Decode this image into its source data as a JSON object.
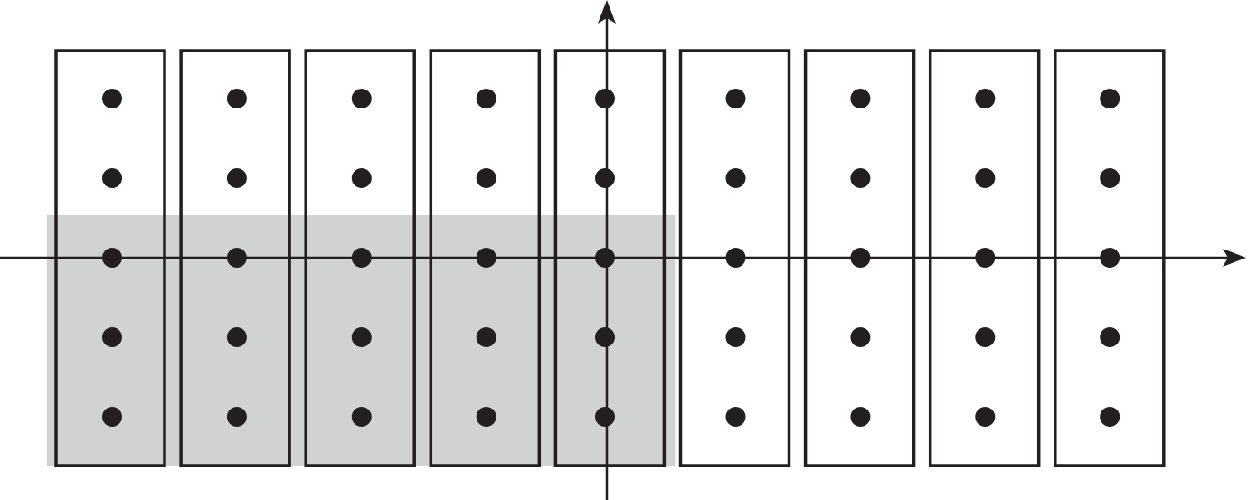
{
  "diagram": {
    "type": "lattice-grid-with-column-boxes",
    "columns": 9,
    "points_per_column": 5,
    "shaded_region": {
      "columns_covered": 5,
      "rows_covered": 3,
      "color": "#d1d2d4"
    },
    "colors": {
      "stroke": "#231f20",
      "dot": "#231f20",
      "background": "#ffffff"
    },
    "axes": {
      "horizontal_arrow": true,
      "vertical_arrow": true
    }
  }
}
